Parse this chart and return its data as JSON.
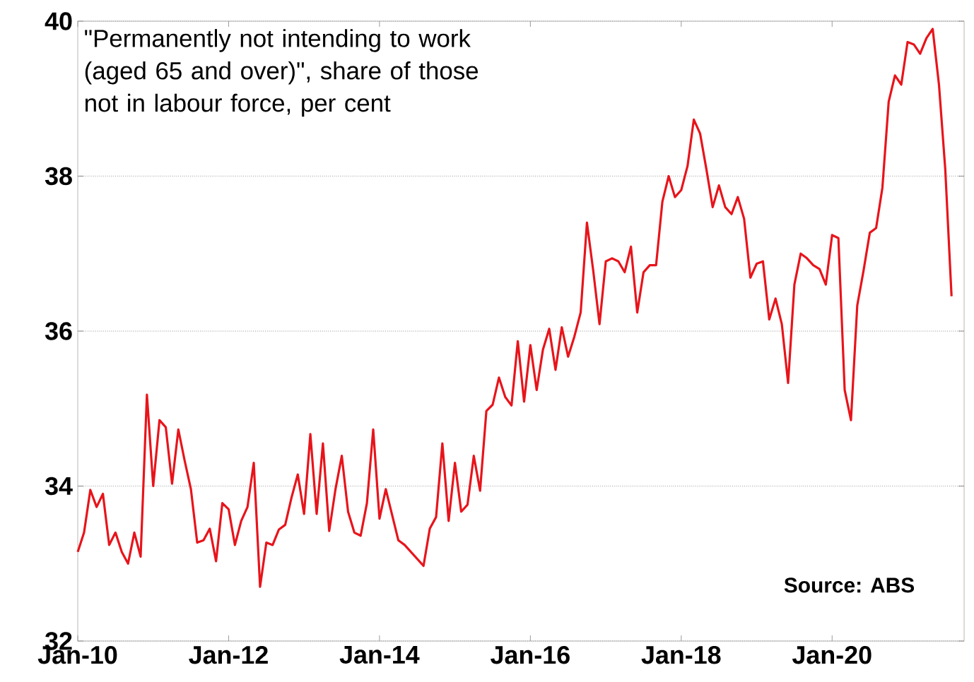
{
  "chart_data": {
    "type": "line",
    "title": "\"Permanently not intending to work (aged 65 and over)\", share of those not in labour force, per cent",
    "annotations": [
      "Source: ABS"
    ],
    "x": [
      "2010-01",
      "2010-02",
      "2010-03",
      "2010-04",
      "2010-05",
      "2010-06",
      "2010-07",
      "2010-08",
      "2010-09",
      "2010-10",
      "2010-11",
      "2010-12",
      "2011-01",
      "2011-02",
      "2011-03",
      "2011-04",
      "2011-05",
      "2011-06",
      "2011-07",
      "2011-08",
      "2011-09",
      "2011-10",
      "2011-11",
      "2011-12",
      "2012-01",
      "2012-02",
      "2012-03",
      "2012-04",
      "2012-05",
      "2012-06",
      "2012-07",
      "2012-08",
      "2012-09",
      "2012-10",
      "2012-11",
      "2012-12",
      "2013-01",
      "2013-02",
      "2013-03",
      "2013-04",
      "2013-05",
      "2013-06",
      "2013-07",
      "2013-08",
      "2013-09",
      "2013-10",
      "2013-11",
      "2013-12",
      "2014-01",
      "2014-02",
      "2014-04",
      "2014-05",
      "2014-08",
      "2014-09",
      "2014-10",
      "2014-11",
      "2014-12",
      "2015-01",
      "2015-02",
      "2015-03",
      "2015-04",
      "2015-05",
      "2015-06",
      "2015-07",
      "2015-08",
      "2015-09",
      "2015-10",
      "2015-11",
      "2015-12",
      "2016-01",
      "2016-02",
      "2016-03",
      "2016-04",
      "2016-05",
      "2016-06",
      "2016-07",
      "2016-08",
      "2016-09",
      "2016-10",
      "2016-11",
      "2016-12",
      "2017-01",
      "2017-02",
      "2017-03",
      "2017-04",
      "2017-05",
      "2017-06",
      "2017-07",
      "2017-08",
      "2017-09",
      "2017-10",
      "2017-11",
      "2017-12",
      "2018-01",
      "2018-02",
      "2018-03",
      "2018-04",
      "2018-05",
      "2018-06",
      "2018-07",
      "2018-08",
      "2018-09",
      "2018-10",
      "2018-11",
      "2018-12",
      "2019-01",
      "2019-02",
      "2019-03",
      "2019-04",
      "2019-05",
      "2019-06",
      "2019-07",
      "2019-08",
      "2019-09",
      "2019-10",
      "2019-11",
      "2019-12",
      "2020-01",
      "2020-02",
      "2020-03",
      "2020-04",
      "2020-05",
      "2020-06",
      "2020-07",
      "2020-08",
      "2020-09",
      "2020-10",
      "2020-11",
      "2020-12",
      "2021-01",
      "2021-02",
      "2021-03",
      "2021-04",
      "2021-05",
      "2021-06",
      "2021-07",
      "2021-08"
    ],
    "series": [
      {
        "color": "#e8141b",
        "values": [
          33.15,
          33.4,
          33.95,
          33.73,
          33.9,
          33.24,
          33.4,
          33.15,
          33.0,
          33.4,
          33.09,
          35.18,
          34.0,
          34.85,
          34.76,
          34.03,
          34.73,
          34.33,
          33.96,
          33.27,
          33.3,
          33.45,
          33.03,
          33.78,
          33.7,
          33.24,
          33.55,
          33.73,
          34.3,
          32.7,
          33.27,
          33.24,
          33.44,
          33.5,
          33.85,
          34.15,
          33.64,
          34.67,
          33.64,
          34.55,
          33.42,
          33.96,
          34.39,
          33.67,
          33.4,
          33.36,
          33.78,
          34.73,
          33.58,
          33.96,
          33.3,
          33.24,
          32.97,
          33.45,
          33.6,
          34.55,
          33.55,
          34.3,
          33.67,
          33.76,
          34.39,
          33.94,
          34.97,
          35.05,
          35.4,
          35.15,
          35.04,
          35.87,
          35.09,
          35.82,
          35.24,
          35.76,
          36.03,
          35.5,
          36.05,
          35.67,
          35.93,
          36.24,
          37.4,
          36.78,
          36.09,
          36.9,
          36.94,
          36.9,
          36.76,
          37.09,
          36.24,
          36.76,
          36.85,
          36.85,
          37.67,
          38.0,
          37.73,
          37.82,
          38.13,
          38.73,
          38.55,
          38.09,
          37.6,
          37.88,
          37.6,
          37.51,
          37.73,
          37.45,
          36.69,
          36.87,
          36.9,
          36.15,
          36.42,
          36.09,
          35.33,
          36.6,
          37.0,
          36.94,
          36.85,
          36.8,
          36.6,
          37.24,
          37.2,
          35.24,
          34.85,
          36.33,
          36.78,
          37.27,
          37.33,
          37.85,
          38.96,
          39.3,
          39.18,
          39.73,
          39.7,
          39.58,
          39.78,
          39.9,
          39.18,
          38.09,
          36.45
        ]
      }
    ],
    "xlim": [
      "2010-01",
      "2021-10"
    ],
    "xticks": [
      {
        "value": "2010-01",
        "label": "Jan-10"
      },
      {
        "value": "2012-01",
        "label": "Jan-12"
      },
      {
        "value": "2014-01",
        "label": "Jan-14"
      },
      {
        "value": "2016-01",
        "label": "Jan-16"
      },
      {
        "value": "2018-01",
        "label": "Jan-18"
      },
      {
        "value": "2020-01",
        "label": "Jan-20"
      }
    ],
    "ylim": [
      32,
      40
    ],
    "yticks": [
      32,
      34,
      36,
      38,
      40
    ],
    "grid": "y",
    "marker": "none",
    "line_style": "solid",
    "legend": false
  }
}
